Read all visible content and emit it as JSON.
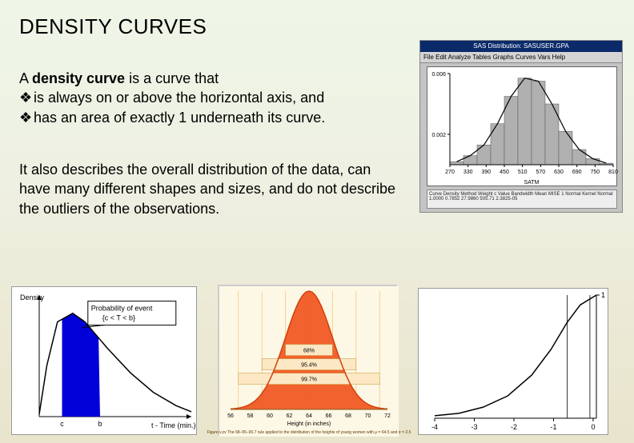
{
  "title": "DENSITY CURVES",
  "intro": {
    "line1a": "A ",
    "line1b": "density curve",
    "line1c": " is a curve that",
    "bullet1": "is always on or above the horizontal axis, and",
    "bullet2": "has an area of exactly 1 underneath its curve.",
    "bullet_glyph": "❖"
  },
  "para2": "It also describes the overall distribution of the data, can have many different shapes and sizes, and do not describe the outliers of the observations.",
  "sas_panel": {
    "title": "SAS Distribution: SASUSER.GPA",
    "menu": "File  Edit  Analyze  Tables  Graphs  Curves  Vars  Help",
    "xlabel": "SATM",
    "xticks": [
      "270",
      "330",
      "390",
      "450",
      "510",
      "570",
      "630",
      "690",
      "750",
      "810"
    ],
    "yticks": [
      "0.002",
      "0.006"
    ],
    "histogram": {
      "bar_color": "#b0b0b0",
      "bar_edge": "#555",
      "curve_color": "#000",
      "values": [
        0.0002,
        0.0006,
        0.0013,
        0.0027,
        0.0045,
        0.0057,
        0.0055,
        0.004,
        0.0022,
        0.001,
        0.0004,
        0.0001
      ],
      "ymax": 0.006
    },
    "footer": "Curve    Density Method    Weight    c    Value    Bandwidth    Mean    MISE    1    Normal    \nKernel    Normal    1.0000    0.7852    27.9860    505.71    2.3825-05"
  },
  "chart1": {
    "ylabel": "Density",
    "xlabel": "t - Time (min.)",
    "legend_box": "Probability of event\n{c < T < b}",
    "area_color": "#0000d8",
    "curve_color": "#000",
    "xticks_labels": [
      "c",
      "b"
    ],
    "curve_pts": [
      [
        0,
        0.02
      ],
      [
        0.05,
        0.42
      ],
      [
        0.12,
        0.78
      ],
      [
        0.22,
        0.85
      ],
      [
        0.3,
        0.78
      ],
      [
        0.45,
        0.56
      ],
      [
        0.6,
        0.36
      ],
      [
        0.75,
        0.2
      ],
      [
        0.9,
        0.09
      ],
      [
        1.0,
        0.04
      ]
    ],
    "fill_from": 0.15,
    "fill_to": 0.4
  },
  "chart2": {
    "bg": "#fdf8e6",
    "fill_color": "#f15a24",
    "curve_color": "#d13f0a",
    "gridline_color": "#f6c06a",
    "xlabel": "Height (in inches)",
    "xticks": [
      "56",
      "58",
      "60",
      "62",
      "64",
      "66",
      "68",
      "70",
      "72"
    ],
    "bands": [
      {
        "label": "68%",
        "color": "#fce8c4"
      },
      {
        "label": "95.4%",
        "color": "#fce8c4"
      },
      {
        "label": "99.7%",
        "color": "#fce8c4"
      }
    ],
    "caption_small": "Figure v.zv  The 68–95–99.7 rule applied to the distribution of the heights of young women with μ = 64.5 and σ = 2.5"
  },
  "chart3": {
    "curve_color": "#000",
    "xticks": [
      "-4",
      "-3",
      "-2",
      "-1",
      "0"
    ],
    "right_ticks": [
      "1"
    ],
    "curve_pts": [
      [
        0,
        0.02
      ],
      [
        0.15,
        0.04
      ],
      [
        0.3,
        0.09
      ],
      [
        0.45,
        0.18
      ],
      [
        0.6,
        0.35
      ],
      [
        0.72,
        0.56
      ],
      [
        0.82,
        0.78
      ],
      [
        0.9,
        0.92
      ],
      [
        1.0,
        1.0
      ]
    ],
    "vlines": [
      0.82,
      0.96
    ]
  }
}
